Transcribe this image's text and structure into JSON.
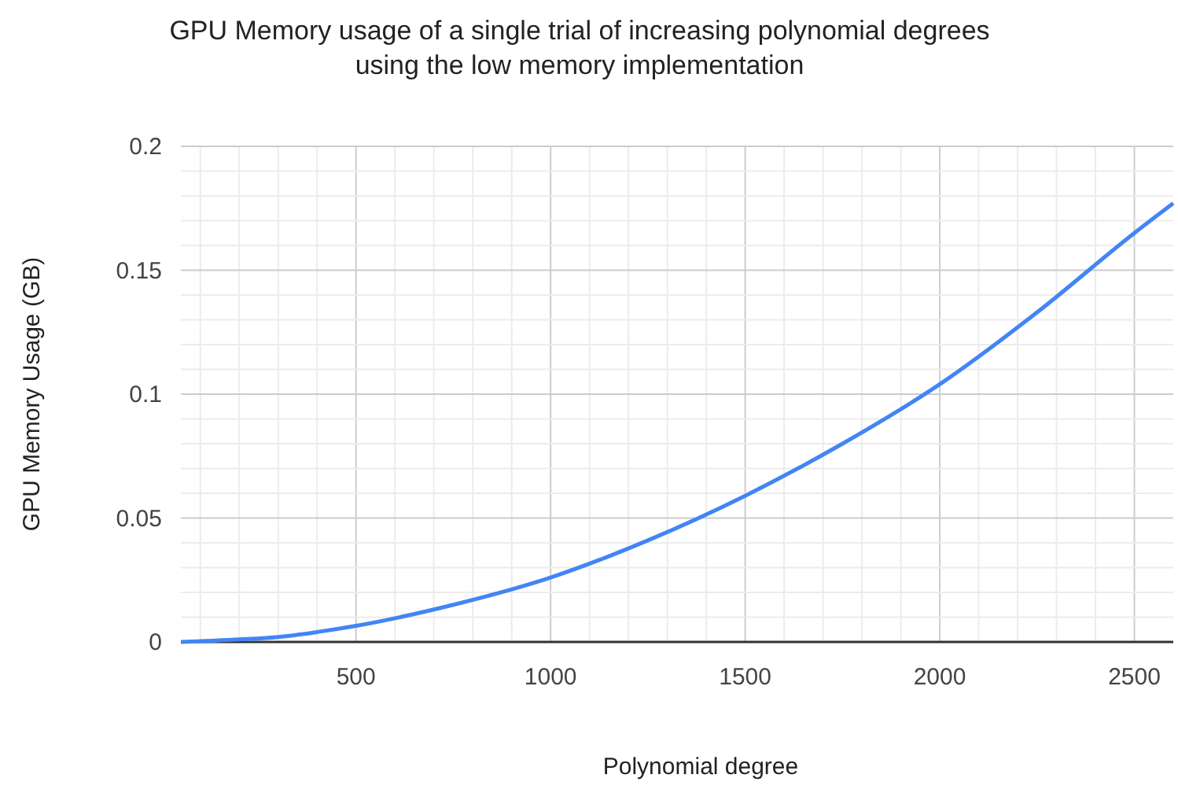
{
  "chart_data": {
    "type": "line",
    "title": "GPU Memory usage of a single trial of increasing polynomial degrees using the low memory implementation",
    "xlabel": "Polynomial degree",
    "ylabel": "GPU Memory Usage (GB)",
    "x": [
      50,
      200,
      300,
      400,
      500,
      750,
      1000,
      1250,
      1500,
      1750,
      2000,
      2250,
      2500,
      2600
    ],
    "series": [
      {
        "color": "#4285f4",
        "values": [
          0,
          0.001,
          0.002,
          0.004,
          0.0065,
          0.015,
          0.026,
          0.041,
          0.059,
          0.08,
          0.104,
          0.133,
          0.165,
          0.177
        ]
      }
    ],
    "xlim": [
      50,
      2600
    ],
    "xticks": [
      {
        "value": 100,
        "label": null
      },
      {
        "value": 200,
        "label": null
      },
      {
        "value": 300,
        "label": null
      },
      {
        "value": 400,
        "label": null
      },
      500,
      {
        "value": 600,
        "label": null
      },
      {
        "value": 700,
        "label": null
      },
      {
        "value": 800,
        "label": null
      },
      {
        "value": 900,
        "label": null
      },
      1000,
      {
        "value": 1100,
        "label": null
      },
      {
        "value": 1200,
        "label": null
      },
      {
        "value": 1300,
        "label": null
      },
      {
        "value": 1400,
        "label": null
      },
      1500,
      {
        "value": 1600,
        "label": null
      },
      {
        "value": 1700,
        "label": null
      },
      {
        "value": 1800,
        "label": null
      },
      {
        "value": 1900,
        "label": null
      },
      2000,
      {
        "value": 2100,
        "label": null
      },
      {
        "value": 2200,
        "label": null
      },
      {
        "value": 2300,
        "label": null
      },
      {
        "value": 2400,
        "label": null
      },
      2500
    ],
    "ylim": [
      0,
      0.2
    ],
    "yticks": [
      0,
      {
        "value": 0.01,
        "label": null
      },
      {
        "value": 0.02,
        "label": null
      },
      {
        "value": 0.03,
        "label": null
      },
      {
        "value": 0.04,
        "label": null
      },
      0.05,
      {
        "value": 0.06,
        "label": null
      },
      {
        "value": 0.07,
        "label": null
      },
      {
        "value": 0.08,
        "label": null
      },
      {
        "value": 0.09,
        "label": null
      },
      0.1,
      {
        "value": 0.11,
        "label": null
      },
      {
        "value": 0.12,
        "label": null
      },
      {
        "value": 0.13,
        "label": null
      },
      {
        "value": 0.14,
        "label": null
      },
      0.15,
      {
        "value": 0.16,
        "label": null
      },
      {
        "value": 0.17,
        "label": null
      },
      {
        "value": 0.18,
        "label": null
      },
      {
        "value": 0.19,
        "label": null
      },
      0.2
    ],
    "grid": true,
    "marker": "none",
    "line_style": "solid"
  }
}
